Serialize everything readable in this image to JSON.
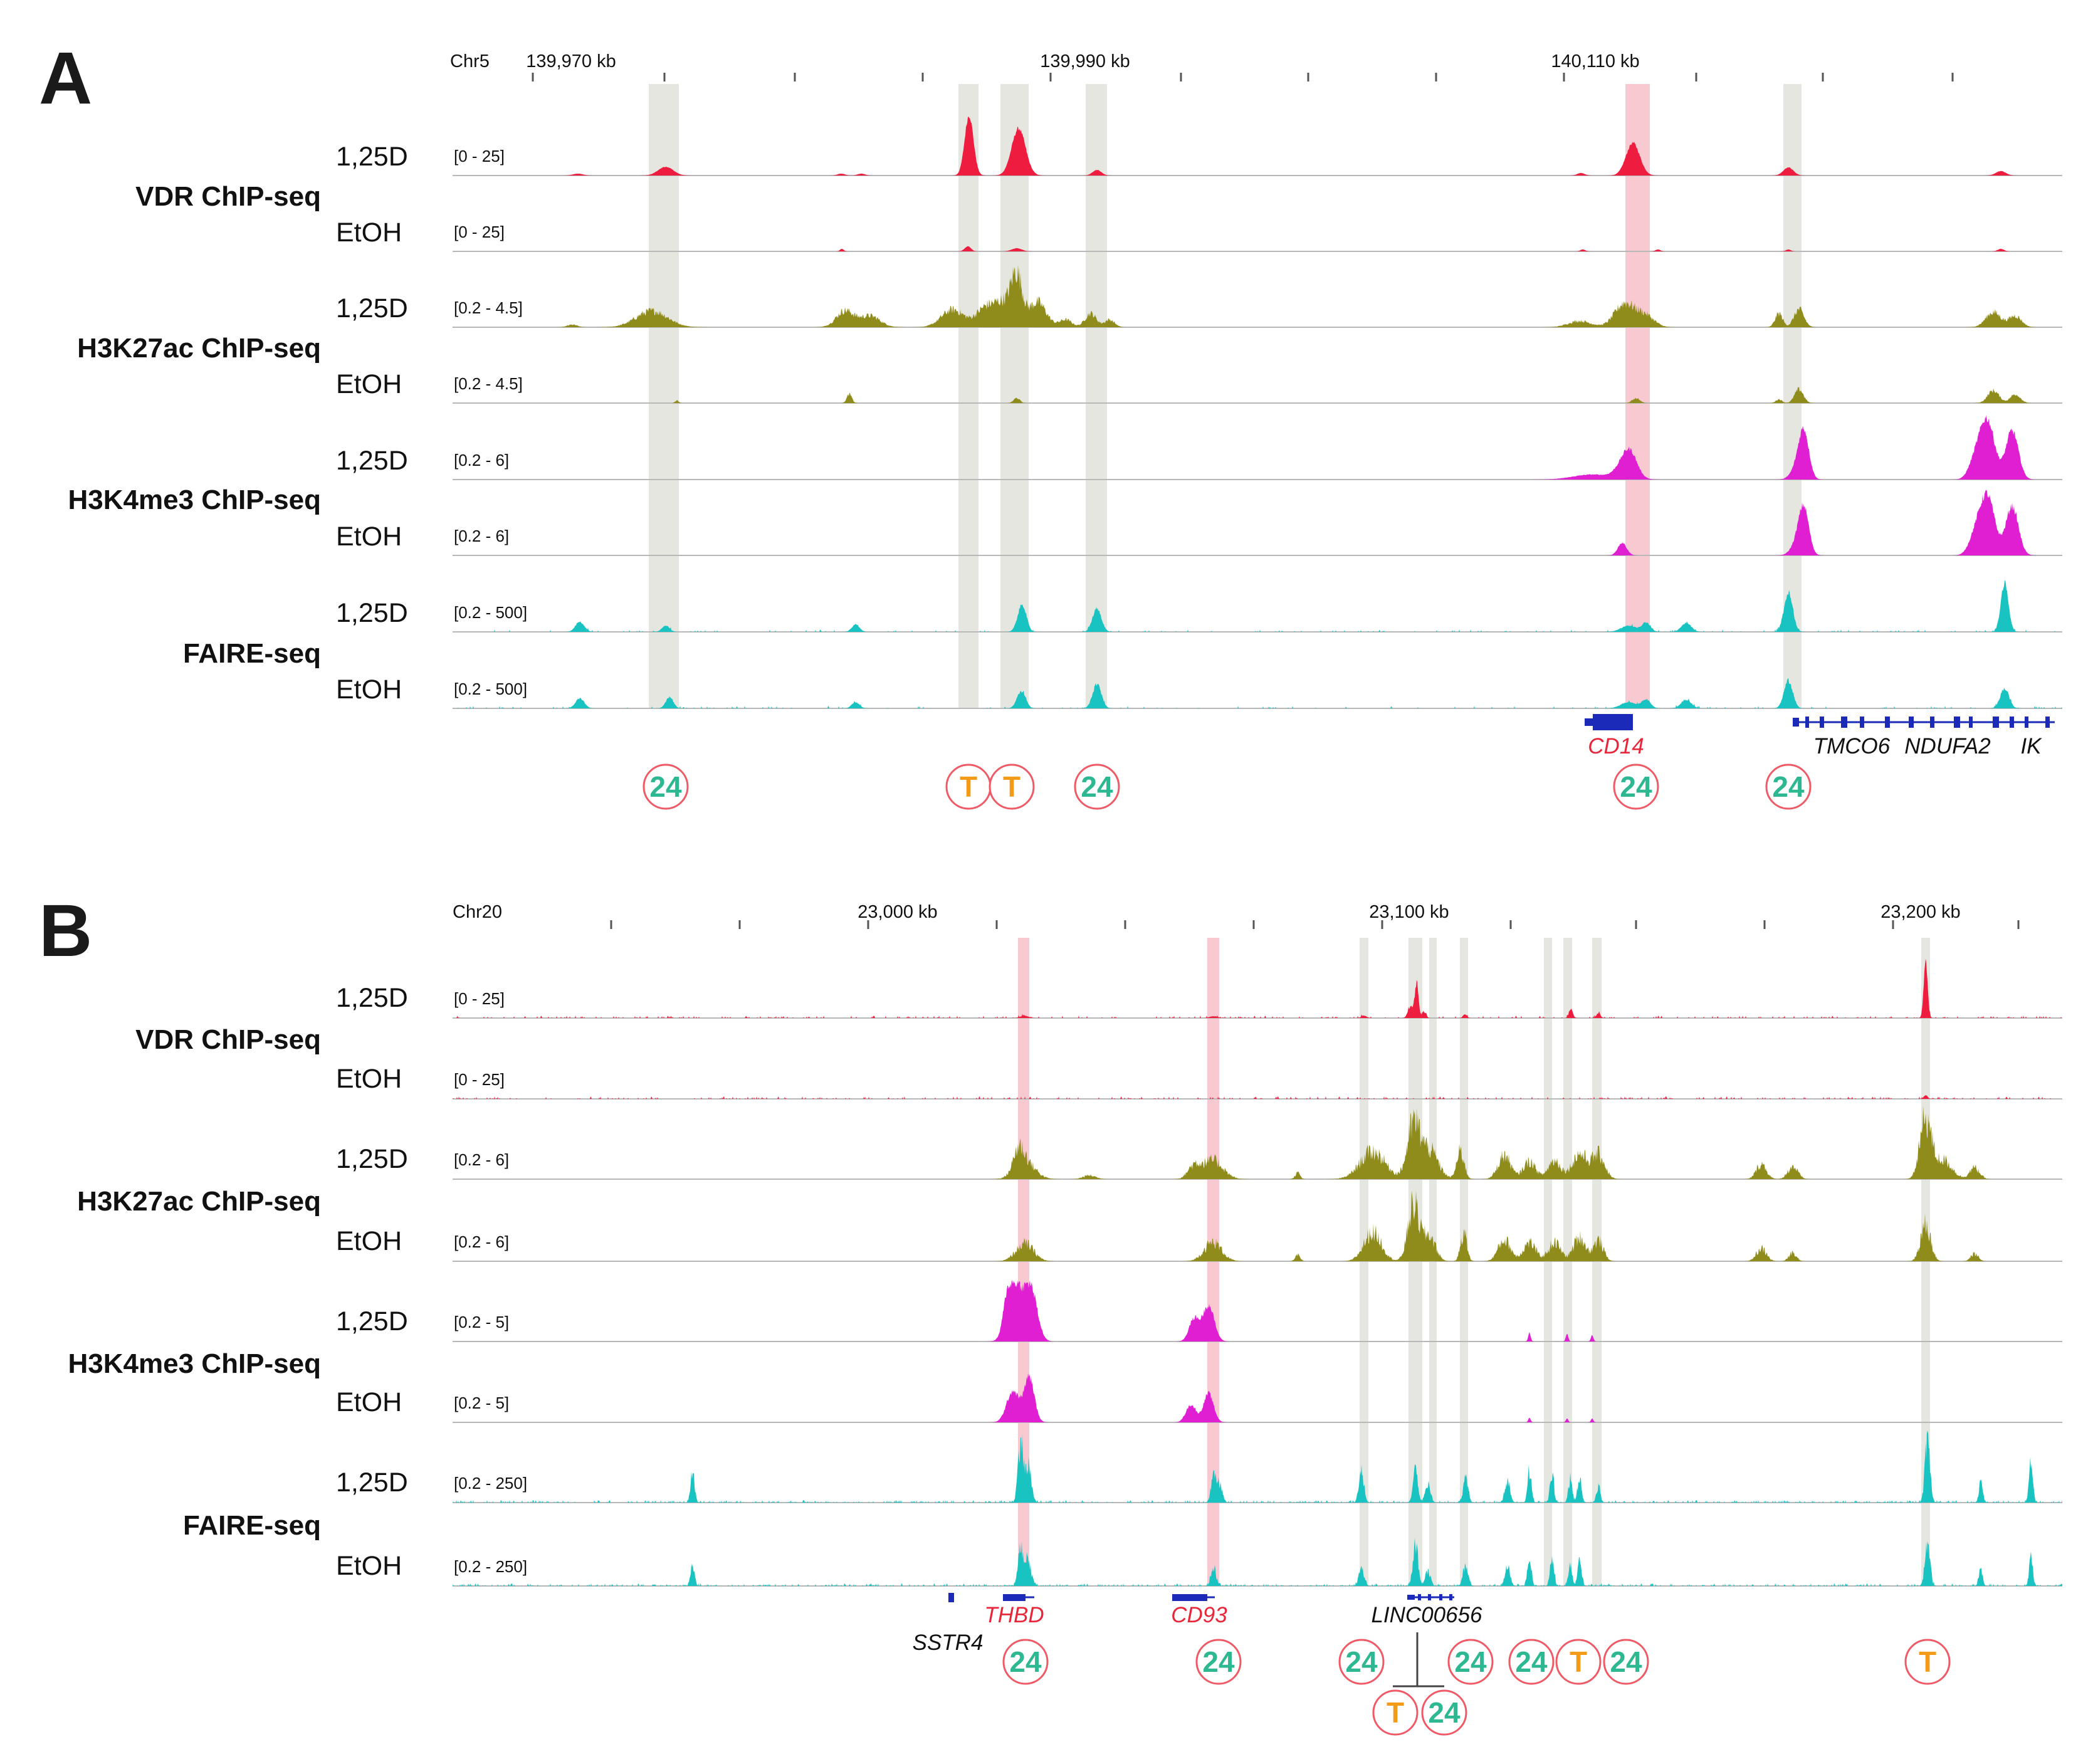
{
  "colors": {
    "vdr": "#ee1c3f",
    "h3k27ac": "#8f8c1c",
    "h3k4me3": "#e01fd2",
    "faire": "#19c3c1",
    "grey_band": "#e5e6df",
    "pink_band": "#f9c9d1",
    "gene_blue": "#1b2ab8",
    "red_gene": "#e8263a",
    "badge_ring": "#ef5a66",
    "badge_24": "#2db892",
    "badge_T": "#f39b17",
    "baseline": "#b8b8b8"
  },
  "panels": [
    {
      "letter": "A",
      "chrom": "Chr5",
      "kb_labels": [
        "139,970 kb",
        "139,990 kb",
        "140,110 kb"
      ],
      "tracks": [
        {
          "assay": "VDR ChIP-seq",
          "condition": "1,25D",
          "range": "[0 - 25]",
          "color": "vdr"
        },
        {
          "assay": "VDR ChIP-seq",
          "condition": "EtOH",
          "range": "[0 - 25]",
          "color": "vdr"
        },
        {
          "assay": "H3K27ac ChIP-seq",
          "condition": "1,25D",
          "range": "[0.2 - 4.5]",
          "color": "h3k27ac"
        },
        {
          "assay": "H3K27ac ChIP-seq",
          "condition": "EtOH",
          "range": "[0.2 - 4.5]",
          "color": "h3k27ac"
        },
        {
          "assay": "H3K4me3 ChIP-seq",
          "condition": "1,25D",
          "range": "[0.2 - 6]",
          "color": "h3k4me3"
        },
        {
          "assay": "H3K4me3 ChIP-seq",
          "condition": "EtOH",
          "range": "[0.2 - 6]",
          "color": "h3k4me3"
        },
        {
          "assay": "FAIRE-seq",
          "condition": "1,25D",
          "range": "[0.2 - 500]",
          "color": "faire"
        },
        {
          "assay": "FAIRE-seq",
          "condition": "EtOH",
          "range": "[0.2 - 500]",
          "color": "faire"
        }
      ],
      "assay_labels": [
        "VDR ChIP-seq",
        "H3K27ac ChIP-seq",
        "H3K4me3 ChIP-seq",
        "FAIRE-seq"
      ],
      "genes": [
        "CD14",
        "TMCO6",
        "NDUFA2",
        "IK"
      ],
      "badges": [
        "24",
        "T",
        "T",
        "24",
        "24",
        "24"
      ]
    },
    {
      "letter": "B",
      "chrom": "Chr20",
      "kb_labels": [
        "23,000 kb",
        "23,100 kb",
        "23,200 kb"
      ],
      "tracks": [
        {
          "assay": "VDR ChIP-seq",
          "condition": "1,25D",
          "range": "[0 - 25]",
          "color": "vdr"
        },
        {
          "assay": "VDR ChIP-seq",
          "condition": "EtOH",
          "range": "[0 - 25]",
          "color": "vdr"
        },
        {
          "assay": "H3K27ac ChIP-seq",
          "condition": "1,25D",
          "range": "[0.2 - 6]",
          "color": "h3k27ac"
        },
        {
          "assay": "H3K27ac ChIP-seq",
          "condition": "EtOH",
          "range": "[0.2 - 6]",
          "color": "h3k27ac"
        },
        {
          "assay": "H3K4me3 ChIP-seq",
          "condition": "1,25D",
          "range": "[0.2 - 5]",
          "color": "h3k4me3"
        },
        {
          "assay": "H3K4me3 ChIP-seq",
          "condition": "EtOH",
          "range": "[0.2 - 5]",
          "color": "h3k4me3"
        },
        {
          "assay": "FAIRE-seq",
          "condition": "1,25D",
          "range": "[0.2 - 250]",
          "color": "faire"
        },
        {
          "assay": "FAIRE-seq",
          "condition": "EtOH",
          "range": "[0.2 - 250]",
          "color": "faire"
        }
      ],
      "assay_labels": [
        "VDR ChIP-seq",
        "H3K27ac ChIP-seq",
        "H3K4me3 ChIP-seq",
        "FAIRE-seq"
      ],
      "genes": [
        "SSTR4",
        "THBD",
        "CD93",
        "LINC00656"
      ],
      "badges": [
        "24",
        "24",
        "24",
        "24",
        "24",
        "T",
        "24",
        "T",
        "T",
        "24"
      ]
    }
  ]
}
